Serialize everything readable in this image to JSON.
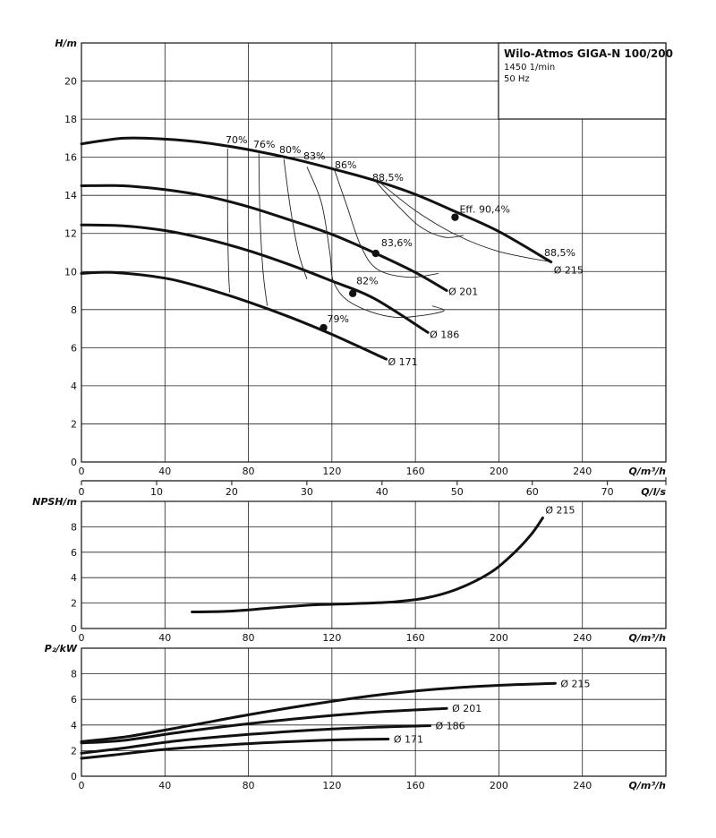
{
  "info_box": {
    "title": "Wilo-Atmos GIGA-N 100/200",
    "speed": "1450 1/min",
    "frequency": "50 Hz"
  },
  "chart_data": [
    {
      "id": "head",
      "type": "line",
      "ylabel": "H/m",
      "xlabel": "Q/m³/h",
      "xlim": [
        0,
        280
      ],
      "ylim": [
        0,
        22
      ],
      "xticks": [
        "0",
        "40",
        "80",
        "120",
        "160",
        "200",
        "240"
      ],
      "yticks": [
        "0",
        "2",
        "4",
        "6",
        "8",
        "10",
        "12",
        "14",
        "16",
        "18",
        "20"
      ],
      "series": [
        {
          "name": "Ø 215",
          "x": [
            0,
            20,
            40,
            60,
            80,
            100,
            120,
            140,
            160,
            180,
            200,
            225
          ],
          "y": [
            16.7,
            17.0,
            16.95,
            16.75,
            16.4,
            15.95,
            15.4,
            14.8,
            14.05,
            13.1,
            12.1,
            10.5
          ]
        },
        {
          "name": "Ø 201",
          "x": [
            0,
            20,
            40,
            60,
            80,
            100,
            120,
            140,
            160,
            175
          ],
          "y": [
            14.5,
            14.5,
            14.3,
            13.95,
            13.4,
            12.7,
            11.95,
            11.0,
            9.95,
            9.0
          ]
        },
        {
          "name": "Ø 186",
          "x": [
            0,
            20,
            40,
            60,
            80,
            100,
            120,
            140,
            166
          ],
          "y": [
            12.45,
            12.4,
            12.15,
            11.7,
            11.1,
            10.35,
            9.5,
            8.6,
            6.8
          ]
        },
        {
          "name": "Ø 171",
          "x": [
            0,
            15,
            40,
            60,
            80,
            100,
            120,
            146
          ],
          "y": [
            9.9,
            9.95,
            9.65,
            9.1,
            8.4,
            7.6,
            6.7,
            5.4
          ]
        }
      ],
      "efficiency_points": [
        {
          "label": "Eff. 90,4%",
          "x": 179,
          "y": 12.85
        },
        {
          "label": "83,6%",
          "x": 141,
          "y": 10.95
        },
        {
          "label": "82%",
          "x": 130,
          "y": 8.85
        },
        {
          "label": "79%",
          "x": 116,
          "y": 7.05
        }
      ],
      "iso_efficiency_labels": [
        "70%",
        "76%",
        "80%",
        "83%",
        "86%",
        "88,5%",
        "88,5%"
      ],
      "annotations": [
        "Ø 215",
        "Ø 201",
        "Ø 186",
        "Ø 171"
      ]
    },
    {
      "id": "flow-ls-axis",
      "type": "axis",
      "xlabel": "Q/l/s",
      "xlim": [
        0,
        77.78
      ],
      "xticks": [
        "0",
        "10",
        "20",
        "30",
        "40",
        "50",
        "60",
        "70"
      ]
    },
    {
      "id": "npsh",
      "type": "line",
      "ylabel": "NPSH/m",
      "xlabel": "Q/m³/h",
      "xlim": [
        0,
        280
      ],
      "ylim": [
        0,
        10
      ],
      "xticks": [
        "0",
        "40",
        "80",
        "120",
        "160",
        "200",
        "240"
      ],
      "yticks": [
        "0",
        "2",
        "4",
        "6",
        "8"
      ],
      "series": [
        {
          "name": "Ø 215",
          "x": [
            53,
            70,
            90,
            110,
            130,
            150,
            165,
            180,
            195,
            205,
            215,
            221
          ],
          "y": [
            1.3,
            1.35,
            1.6,
            1.85,
            1.95,
            2.1,
            2.4,
            3.1,
            4.3,
            5.6,
            7.3,
            8.7
          ]
        }
      ]
    },
    {
      "id": "power",
      "type": "line",
      "ylabel": "P₂/kW",
      "xlabel": "Q/m³/h",
      "xlim": [
        0,
        280
      ],
      "ylim": [
        0,
        10
      ],
      "xticks": [
        "0",
        "40",
        "80",
        "120",
        "160",
        "200",
        "240"
      ],
      "yticks": [
        "0",
        "2",
        "4",
        "6",
        "8"
      ],
      "series": [
        {
          "name": "Ø 215",
          "x": [
            0,
            22,
            50,
            80,
            110,
            140,
            170,
            200,
            227
          ],
          "y": [
            2.7,
            3.1,
            3.9,
            4.8,
            5.6,
            6.3,
            6.8,
            7.1,
            7.25
          ]
        },
        {
          "name": "Ø 201",
          "x": [
            0,
            20,
            50,
            80,
            110,
            140,
            175
          ],
          "y": [
            2.6,
            2.8,
            3.5,
            4.1,
            4.6,
            5.0,
            5.3
          ]
        },
        {
          "name": "Ø 186",
          "x": [
            0,
            18,
            45,
            75,
            105,
            135,
            167
          ],
          "y": [
            1.8,
            2.15,
            2.75,
            3.2,
            3.55,
            3.8,
            3.95
          ]
        },
        {
          "name": "Ø 171",
          "x": [
            0,
            15,
            40,
            70,
            100,
            125,
            147
          ],
          "y": [
            1.4,
            1.65,
            2.1,
            2.45,
            2.7,
            2.85,
            2.9
          ]
        }
      ]
    }
  ]
}
